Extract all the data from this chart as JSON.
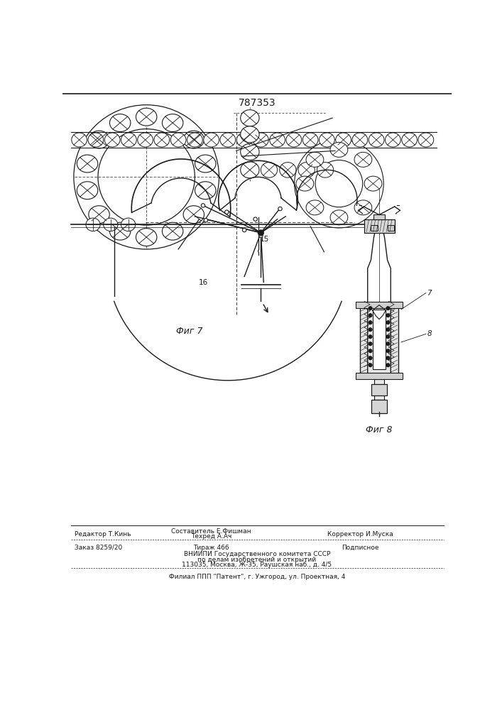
{
  "patent_number": "787353",
  "fig7_label": "Фиг 7",
  "fig8_label": "Фиг 8",
  "label_15": "15",
  "label_16": "16",
  "label_7": "7",
  "label_8": "8",
  "background_color": "#ffffff",
  "line_color": "#1a1a1a",
  "footer_editor": "Редактор Т.Кинь",
  "footer_sostavitel": "Составитель Е.Фишман",
  "footer_tehred": "Техред А.Ач",
  "footer_korrektor": "Корректор И.Муска",
  "footer_zakaz": "Заказ 8259/20",
  "footer_tirazh": "Тираж 466",
  "footer_podpisnoe": "Подписное",
  "footer_vniipи": "ВНИИПИ Государственного комитета СССР",
  "footer_dela": "по делам изобретений и открытий",
  "footer_addr": "113035, Москва, Ж-35, Раушская наб., д. 4/5",
  "footer_filial": "Филиал ППП \"Патент\", г. Ужгород, ул. Проектная, 4"
}
